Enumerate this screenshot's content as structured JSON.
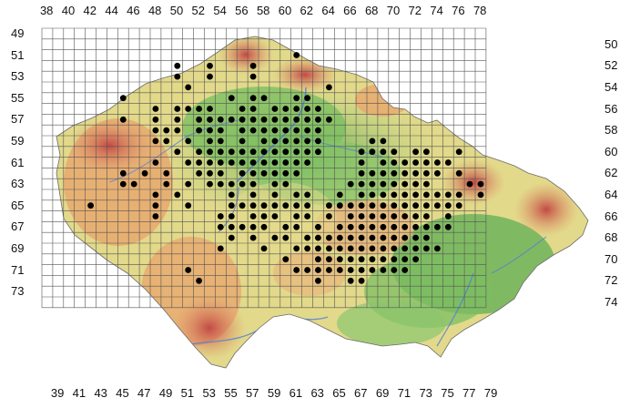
{
  "axes": {
    "top": [
      "38",
      "40",
      "42",
      "44",
      "46",
      "48",
      "50",
      "52",
      "54",
      "56",
      "58",
      "60",
      "62",
      "64",
      "66",
      "68",
      "70",
      "72",
      "74",
      "76",
      "78"
    ],
    "bottom": [
      "39",
      "41",
      "43",
      "45",
      "47",
      "49",
      "51",
      "53",
      "55",
      "57",
      "59",
      "61",
      "63",
      "65",
      "67",
      "69",
      "71",
      "73",
      "75",
      "77",
      "79"
    ],
    "left": [
      "49",
      "51",
      "53",
      "55",
      "57",
      "59",
      "61",
      "63",
      "65",
      "67",
      "69",
      "71",
      "73"
    ],
    "right": [
      "50",
      "52",
      "54",
      "56",
      "58",
      "60",
      "62",
      "64",
      "66",
      "68",
      "70",
      "72",
      "74"
    ]
  },
  "chart_data": {
    "type": "scatter",
    "description_units": "grid cell (column number, row number) of occurrence",
    "points": [
      [
        61,
        51
      ],
      [
        50,
        52
      ],
      [
        53,
        52
      ],
      [
        57,
        52
      ],
      [
        50,
        53
      ],
      [
        53,
        53
      ],
      [
        57,
        53
      ],
      [
        51,
        54
      ],
      [
        64,
        54
      ],
      [
        45,
        55
      ],
      [
        55,
        55
      ],
      [
        57,
        55
      ],
      [
        58,
        55
      ],
      [
        61,
        55
      ],
      [
        62,
        55
      ],
      [
        48,
        56
      ],
      [
        50,
        56
      ],
      [
        51,
        56
      ],
      [
        52,
        56
      ],
      [
        53,
        56
      ],
      [
        56,
        56
      ],
      [
        57,
        56
      ],
      [
        59,
        56
      ],
      [
        60,
        56
      ],
      [
        61,
        56
      ],
      [
        62,
        56
      ],
      [
        63,
        56
      ],
      [
        45,
        57
      ],
      [
        48,
        57
      ],
      [
        50,
        57
      ],
      [
        52,
        57
      ],
      [
        53,
        57
      ],
      [
        54,
        57
      ],
      [
        55,
        57
      ],
      [
        56,
        57
      ],
      [
        57,
        57
      ],
      [
        58,
        57
      ],
      [
        59,
        57
      ],
      [
        60,
        57
      ],
      [
        61,
        57
      ],
      [
        62,
        57
      ],
      [
        63,
        57
      ],
      [
        64,
        57
      ],
      [
        48,
        58
      ],
      [
        49,
        58
      ],
      [
        50,
        58
      ],
      [
        52,
        58
      ],
      [
        53,
        58
      ],
      [
        54,
        58
      ],
      [
        56,
        58
      ],
      [
        57,
        58
      ],
      [
        58,
        58
      ],
      [
        59,
        58
      ],
      [
        60,
        58
      ],
      [
        61,
        58
      ],
      [
        62,
        58
      ],
      [
        63,
        58
      ],
      [
        48,
        59
      ],
      [
        49,
        59
      ],
      [
        51,
        59
      ],
      [
        53,
        59
      ],
      [
        54,
        59
      ],
      [
        56,
        59
      ],
      [
        58,
        59
      ],
      [
        59,
        59
      ],
      [
        60,
        59
      ],
      [
        61,
        59
      ],
      [
        62,
        59
      ],
      [
        63,
        59
      ],
      [
        68,
        59
      ],
      [
        69,
        59
      ],
      [
        50,
        60
      ],
      [
        52,
        60
      ],
      [
        53,
        60
      ],
      [
        54,
        60
      ],
      [
        55,
        60
      ],
      [
        56,
        60
      ],
      [
        57,
        60
      ],
      [
        58,
        60
      ],
      [
        59,
        60
      ],
      [
        60,
        60
      ],
      [
        61,
        60
      ],
      [
        62,
        60
      ],
      [
        63,
        60
      ],
      [
        67,
        60
      ],
      [
        68,
        60
      ],
      [
        69,
        60
      ],
      [
        70,
        60
      ],
      [
        72,
        60
      ],
      [
        73,
        60
      ],
      [
        76,
        60
      ],
      [
        48,
        61
      ],
      [
        51,
        61
      ],
      [
        52,
        61
      ],
      [
        53,
        61
      ],
      [
        54,
        61
      ],
      [
        55,
        61
      ],
      [
        56,
        61
      ],
      [
        57,
        61
      ],
      [
        58,
        61
      ],
      [
        59,
        61
      ],
      [
        60,
        61
      ],
      [
        61,
        61
      ],
      [
        62,
        61
      ],
      [
        67,
        61
      ],
      [
        69,
        61
      ],
      [
        70,
        61
      ],
      [
        71,
        61
      ],
      [
        72,
        61
      ],
      [
        73,
        61
      ],
      [
        74,
        61
      ],
      [
        75,
        61
      ],
      [
        45,
        62
      ],
      [
        47,
        62
      ],
      [
        49,
        62
      ],
      [
        52,
        62
      ],
      [
        53,
        62
      ],
      [
        54,
        62
      ],
      [
        56,
        62
      ],
      [
        57,
        62
      ],
      [
        58,
        62
      ],
      [
        59,
        62
      ],
      [
        60,
        62
      ],
      [
        61,
        62
      ],
      [
        67,
        62
      ],
      [
        68,
        62
      ],
      [
        69,
        62
      ],
      [
        70,
        62
      ],
      [
        71,
        62
      ],
      [
        72,
        62
      ],
      [
        73,
        62
      ],
      [
        74,
        62
      ],
      [
        76,
        62
      ],
      [
        45,
        63
      ],
      [
        46,
        63
      ],
      [
        49,
        63
      ],
      [
        51,
        63
      ],
      [
        53,
        63
      ],
      [
        54,
        63
      ],
      [
        55,
        63
      ],
      [
        56,
        63
      ],
      [
        57,
        63
      ],
      [
        59,
        63
      ],
      [
        60,
        63
      ],
      [
        66,
        63
      ],
      [
        67,
        63
      ],
      [
        68,
        63
      ],
      [
        69,
        63
      ],
      [
        70,
        63
      ],
      [
        71,
        63
      ],
      [
        72,
        63
      ],
      [
        73,
        63
      ],
      [
        77,
        63
      ],
      [
        78,
        63
      ],
      [
        48,
        64
      ],
      [
        50,
        64
      ],
      [
        55,
        64
      ],
      [
        57,
        64
      ],
      [
        59,
        64
      ],
      [
        61,
        64
      ],
      [
        62,
        64
      ],
      [
        65,
        64
      ],
      [
        67,
        64
      ],
      [
        68,
        64
      ],
      [
        69,
        64
      ],
      [
        70,
        64
      ],
      [
        71,
        64
      ],
      [
        72,
        64
      ],
      [
        73,
        64
      ],
      [
        74,
        64
      ],
      [
        75,
        64
      ],
      [
        76,
        64
      ],
      [
        78,
        64
      ],
      [
        42,
        65
      ],
      [
        48,
        65
      ],
      [
        51,
        65
      ],
      [
        55,
        65
      ],
      [
        56,
        65
      ],
      [
        57,
        65
      ],
      [
        58,
        65
      ],
      [
        59,
        65
      ],
      [
        60,
        65
      ],
      [
        61,
        65
      ],
      [
        62,
        65
      ],
      [
        64,
        65
      ],
      [
        65,
        65
      ],
      [
        66,
        65
      ],
      [
        67,
        65
      ],
      [
        68,
        65
      ],
      [
        69,
        65
      ],
      [
        70,
        65
      ],
      [
        71,
        65
      ],
      [
        72,
        65
      ],
      [
        73,
        65
      ],
      [
        74,
        65
      ],
      [
        75,
        65
      ],
      [
        76,
        65
      ],
      [
        48,
        66
      ],
      [
        54,
        66
      ],
      [
        55,
        66
      ],
      [
        57,
        66
      ],
      [
        58,
        66
      ],
      [
        59,
        66
      ],
      [
        61,
        66
      ],
      [
        62,
        66
      ],
      [
        64,
        66
      ],
      [
        66,
        66
      ],
      [
        67,
        66
      ],
      [
        68,
        66
      ],
      [
        69,
        66
      ],
      [
        70,
        66
      ],
      [
        71,
        66
      ],
      [
        72,
        66
      ],
      [
        73,
        66
      ],
      [
        75,
        66
      ],
      [
        54,
        67
      ],
      [
        55,
        67
      ],
      [
        56,
        67
      ],
      [
        57,
        67
      ],
      [
        58,
        67
      ],
      [
        60,
        67
      ],
      [
        61,
        67
      ],
      [
        63,
        67
      ],
      [
        65,
        67
      ],
      [
        66,
        67
      ],
      [
        67,
        67
      ],
      [
        68,
        67
      ],
      [
        69,
        67
      ],
      [
        70,
        67
      ],
      [
        71,
        67
      ],
      [
        72,
        67
      ],
      [
        73,
        67
      ],
      [
        74,
        67
      ],
      [
        75,
        67
      ],
      [
        55,
        68
      ],
      [
        57,
        68
      ],
      [
        59,
        68
      ],
      [
        60,
        68
      ],
      [
        62,
        68
      ],
      [
        63,
        68
      ],
      [
        64,
        68
      ],
      [
        65,
        68
      ],
      [
        66,
        68
      ],
      [
        67,
        68
      ],
      [
        68,
        68
      ],
      [
        69,
        68
      ],
      [
        70,
        68
      ],
      [
        71,
        68
      ],
      [
        72,
        68
      ],
      [
        73,
        68
      ],
      [
        54,
        69
      ],
      [
        58,
        69
      ],
      [
        61,
        69
      ],
      [
        62,
        69
      ],
      [
        63,
        69
      ],
      [
        64,
        69
      ],
      [
        65,
        69
      ],
      [
        66,
        69
      ],
      [
        67,
        69
      ],
      [
        68,
        69
      ],
      [
        69,
        69
      ],
      [
        70,
        69
      ],
      [
        71,
        69
      ],
      [
        72,
        69
      ],
      [
        73,
        69
      ],
      [
        74,
        69
      ],
      [
        60,
        70
      ],
      [
        63,
        70
      ],
      [
        64,
        70
      ],
      [
        65,
        70
      ],
      [
        66,
        70
      ],
      [
        67,
        70
      ],
      [
        68,
        70
      ],
      [
        69,
        70
      ],
      [
        70,
        70
      ],
      [
        71,
        70
      ],
      [
        72,
        70
      ],
      [
        51,
        71
      ],
      [
        61,
        71
      ],
      [
        62,
        71
      ],
      [
        63,
        71
      ],
      [
        64,
        71
      ],
      [
        65,
        71
      ],
      [
        66,
        71
      ],
      [
        67,
        71
      ],
      [
        68,
        71
      ],
      [
        69,
        71
      ],
      [
        70,
        71
      ],
      [
        71,
        71
      ],
      [
        52,
        72
      ],
      [
        63,
        72
      ],
      [
        66,
        72
      ],
      [
        67,
        72
      ]
    ]
  },
  "colors": {
    "lowland_green": "#6fb55a",
    "hill_yellow": "#e9e08a",
    "upland_orange": "#e8a46a",
    "mountain_red": "#c9504a",
    "river_blue": "#4f7fd6",
    "grid": "#555555",
    "dot": "#000000"
  }
}
